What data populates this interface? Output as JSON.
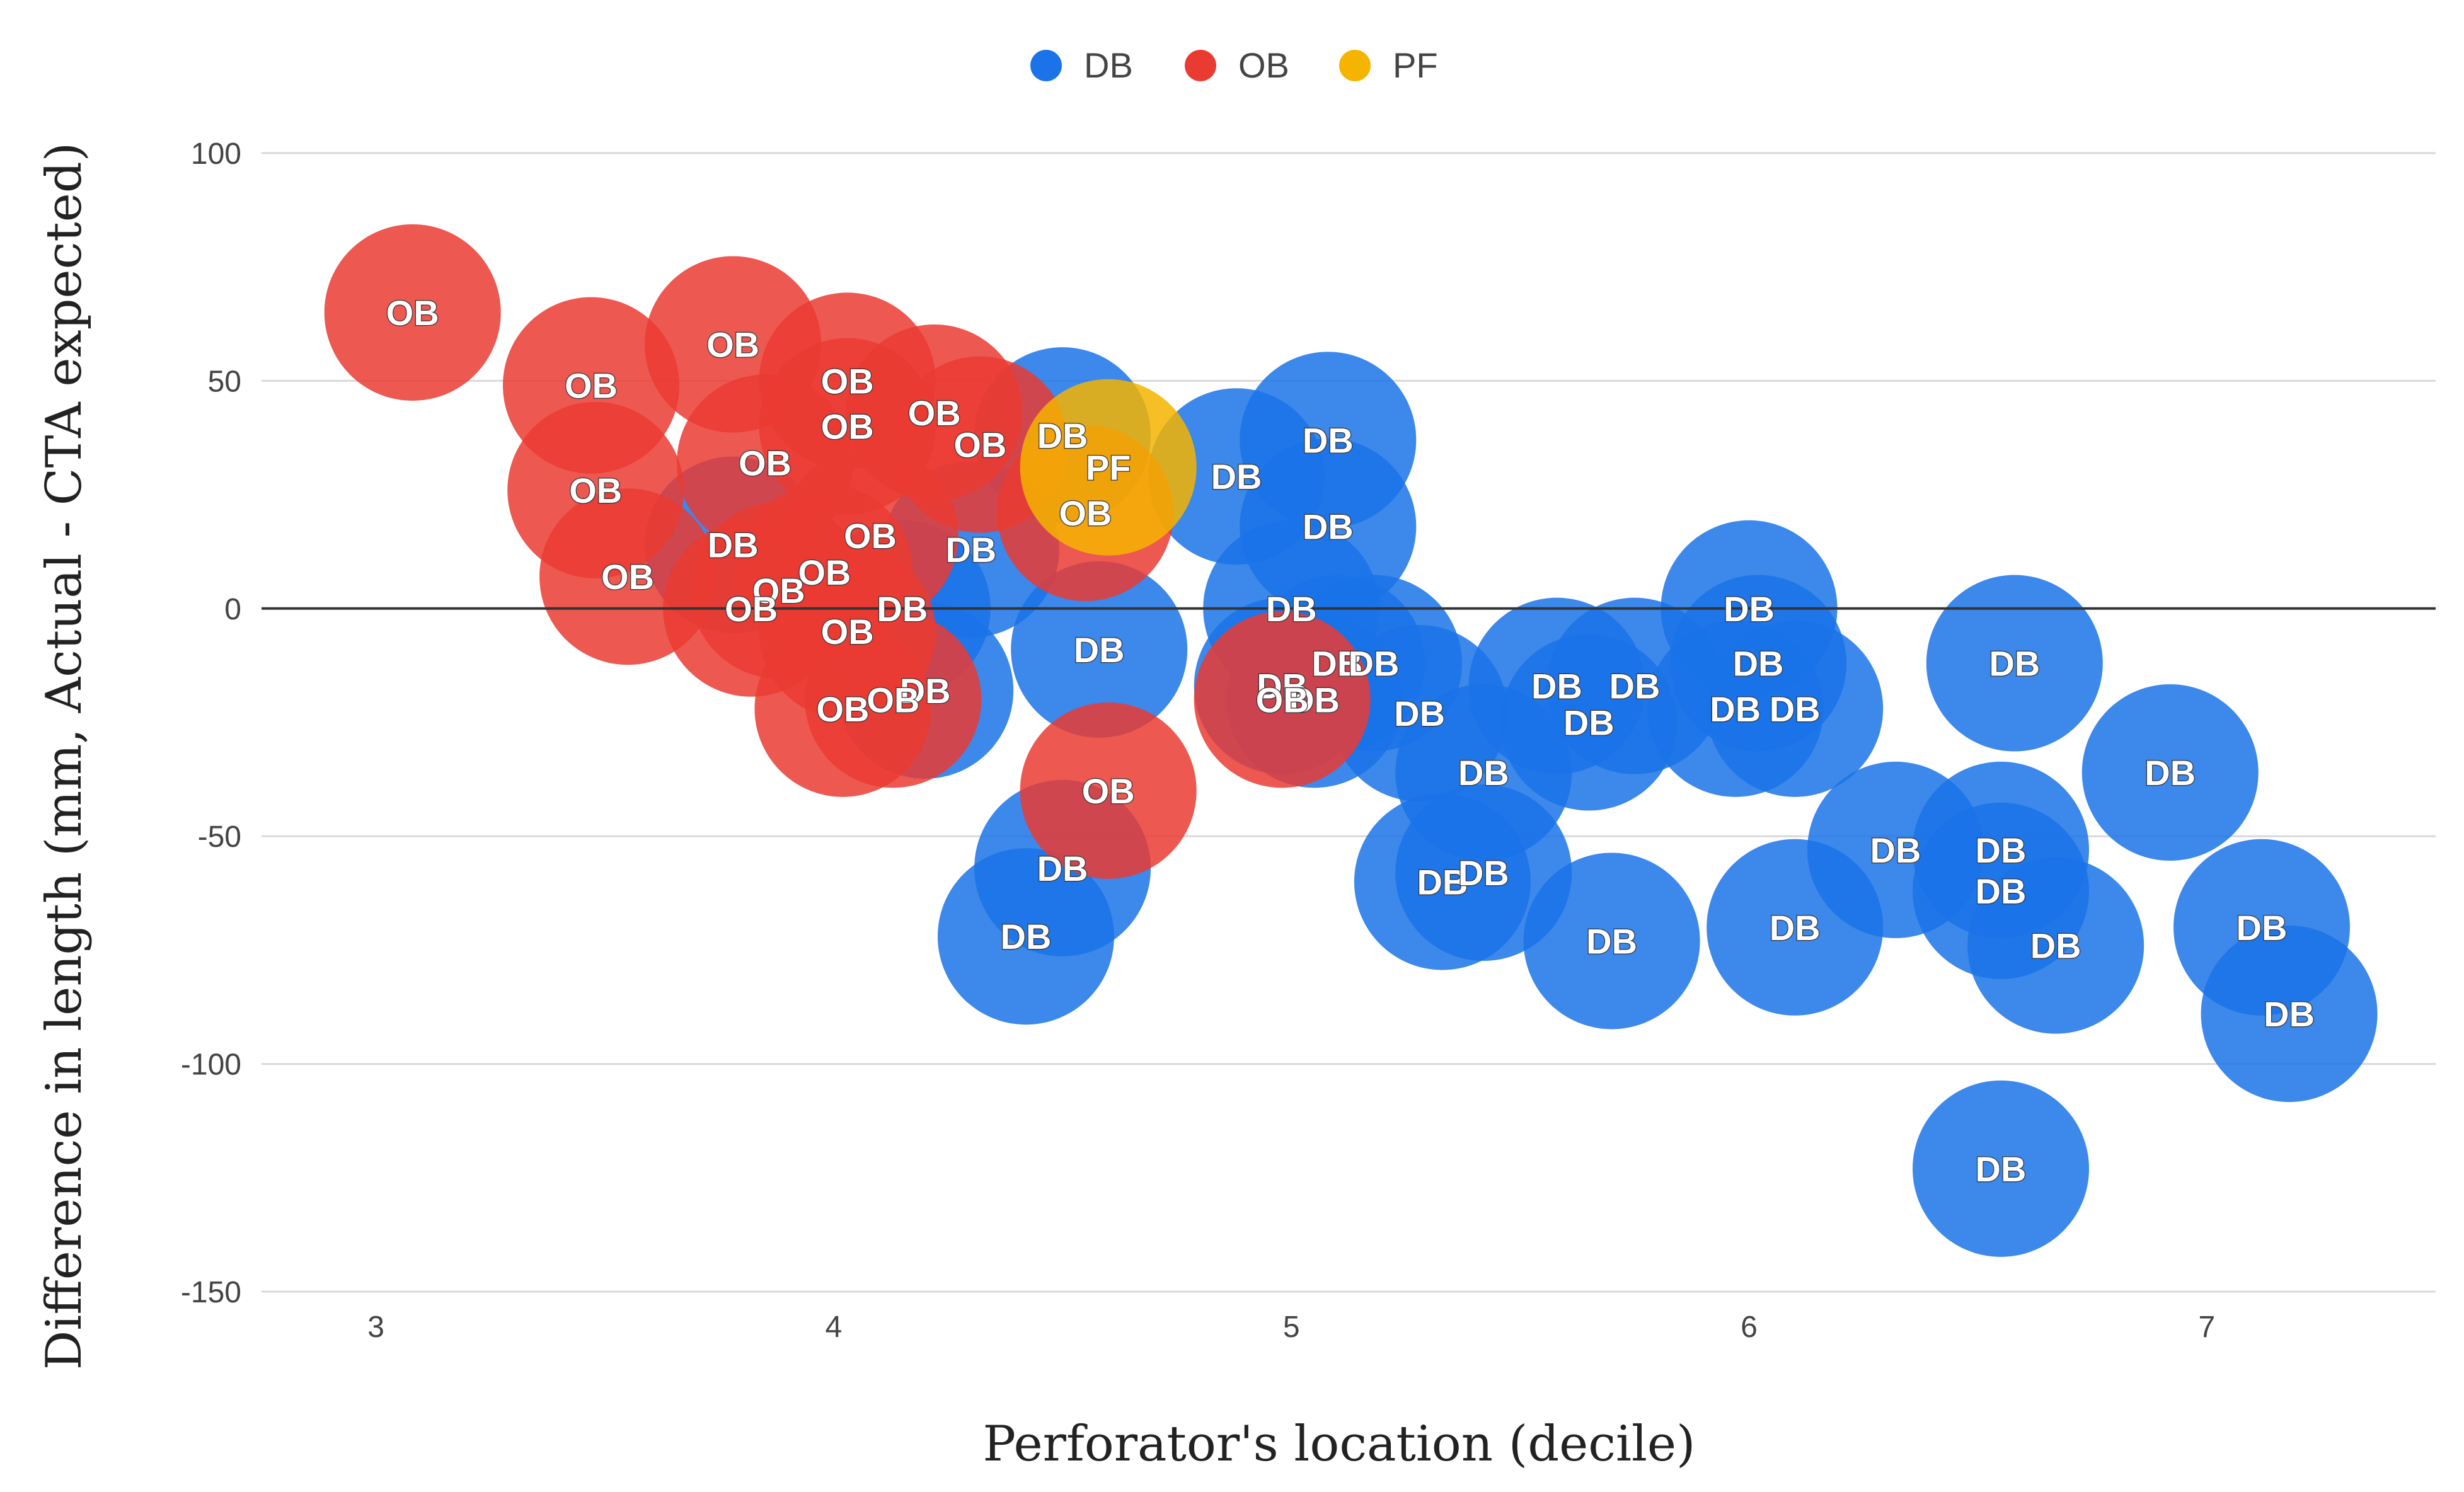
{
  "chart_data": {
    "type": "scatter",
    "subtype": "bubble",
    "title": "",
    "xlabel": "Perforator's location (decile)",
    "ylabel": "Difference in length (mm, Actual - CTA expected)",
    "xlim": [
      2.75,
      7.5
    ],
    "ylim": [
      -150,
      100
    ],
    "xticks": [
      3,
      4,
      5,
      6,
      7
    ],
    "yticks": [
      100,
      50,
      0,
      -50,
      -100,
      -150
    ],
    "zero_line": true,
    "grid": true,
    "legend_position": "top-center",
    "colors": {
      "DB": "#1a73e8",
      "OB": "#ea3b32",
      "PF": "#f4b400"
    },
    "series": [
      {
        "name": "DB",
        "points": [
          {
            "x": 4.5,
            "y": 38,
            "label": "DB"
          },
          {
            "x": 4.3,
            "y": 13,
            "label": "DB"
          },
          {
            "x": 4.15,
            "y": 0,
            "label": "DB"
          },
          {
            "x": 4.2,
            "y": -18,
            "label": "DB"
          },
          {
            "x": 4.58,
            "y": -9,
            "label": "DB"
          },
          {
            "x": 3.78,
            "y": 14,
            "label": "DB"
          },
          {
            "x": 4.5,
            "y": -57,
            "label": "DB"
          },
          {
            "x": 4.42,
            "y": -72,
            "label": "DB"
          },
          {
            "x": 4.88,
            "y": 29,
            "label": "DB"
          },
          {
            "x": 5.08,
            "y": 37,
            "label": "DB"
          },
          {
            "x": 5.08,
            "y": 18,
            "label": "DB"
          },
          {
            "x": 5.0,
            "y": 0,
            "label": "DB"
          },
          {
            "x": 5.1,
            "y": -12,
            "label": "DB"
          },
          {
            "x": 5.18,
            "y": -12,
            "label": "DB"
          },
          {
            "x": 4.98,
            "y": -17,
            "label": "DB"
          },
          {
            "x": 5.05,
            "y": -20,
            "label": "DB"
          },
          {
            "x": 5.28,
            "y": -23,
            "label": "DB"
          },
          {
            "x": 5.42,
            "y": -36,
            "label": "DB"
          },
          {
            "x": 5.33,
            "y": -60,
            "label": "DB"
          },
          {
            "x": 5.42,
            "y": -58,
            "label": "DB"
          },
          {
            "x": 5.58,
            "y": -17,
            "label": "DB"
          },
          {
            "x": 5.65,
            "y": -25,
            "label": "DB"
          },
          {
            "x": 5.75,
            "y": -17,
            "label": "DB"
          },
          {
            "x": 5.7,
            "y": -73,
            "label": "DB"
          },
          {
            "x": 6.0,
            "y": 0,
            "label": "DB"
          },
          {
            "x": 6.02,
            "y": -12,
            "label": "DB"
          },
          {
            "x": 5.97,
            "y": -22,
            "label": "DB"
          },
          {
            "x": 6.1,
            "y": -22,
            "label": "DB"
          },
          {
            "x": 6.1,
            "y": -70,
            "label": "DB"
          },
          {
            "x": 6.32,
            "y": -53,
            "label": "DB"
          },
          {
            "x": 6.55,
            "y": -53,
            "label": "DB"
          },
          {
            "x": 6.55,
            "y": -62,
            "label": "DB"
          },
          {
            "x": 6.67,
            "y": -74,
            "label": "DB"
          },
          {
            "x": 6.58,
            "y": -12,
            "label": "DB"
          },
          {
            "x": 6.92,
            "y": -36,
            "label": "DB"
          },
          {
            "x": 7.12,
            "y": -70,
            "label": "DB"
          },
          {
            "x": 7.18,
            "y": -89,
            "label": "DB"
          },
          {
            "x": 6.55,
            "y": -123,
            "label": "DB"
          }
        ]
      },
      {
        "name": "OB",
        "points": [
          {
            "x": 3.08,
            "y": 65,
            "label": "OB"
          },
          {
            "x": 3.47,
            "y": 49,
            "label": "OB"
          },
          {
            "x": 3.48,
            "y": 26,
            "label": "OB"
          },
          {
            "x": 3.55,
            "y": 7,
            "label": "OB"
          },
          {
            "x": 3.78,
            "y": 58,
            "label": "OB"
          },
          {
            "x": 3.85,
            "y": 32,
            "label": "OB"
          },
          {
            "x": 3.88,
            "y": 4,
            "label": "OB"
          },
          {
            "x": 3.82,
            "y": 0,
            "label": "OB"
          },
          {
            "x": 4.03,
            "y": 50,
            "label": "OB"
          },
          {
            "x": 4.03,
            "y": 40,
            "label": "OB"
          },
          {
            "x": 4.08,
            "y": 16,
            "label": "OB"
          },
          {
            "x": 3.98,
            "y": 8,
            "label": "OB"
          },
          {
            "x": 4.03,
            "y": -5,
            "label": "OB"
          },
          {
            "x": 4.02,
            "y": -22,
            "label": "OB"
          },
          {
            "x": 4.13,
            "y": -20,
            "label": "OB"
          },
          {
            "x": 4.22,
            "y": 43,
            "label": "OB"
          },
          {
            "x": 4.32,
            "y": 36,
            "label": "OB"
          },
          {
            "x": 4.55,
            "y": 21,
            "label": "OB"
          },
          {
            "x": 4.6,
            "y": -40,
            "label": "OB"
          },
          {
            "x": 4.98,
            "y": -20,
            "label": "OB"
          }
        ]
      },
      {
        "name": "PF",
        "points": [
          {
            "x": 4.6,
            "y": 31,
            "label": "PF"
          }
        ]
      }
    ]
  }
}
